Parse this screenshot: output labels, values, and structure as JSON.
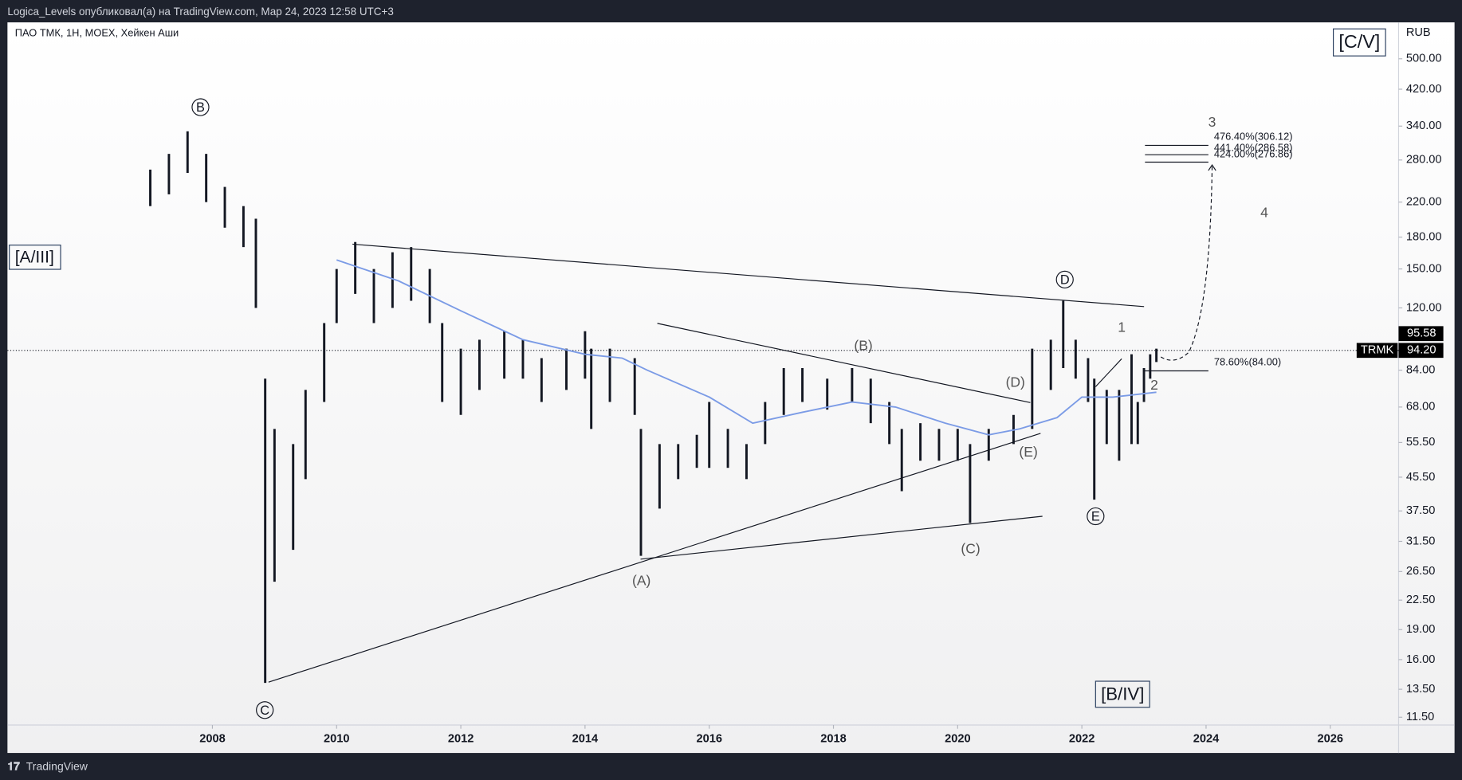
{
  "header": {
    "publisher": "Logica_Levels опубликовал(а) на TradingView.com, Мар 24, 2023 12:58 UTC+3"
  },
  "footer": {
    "brand": "TradingView"
  },
  "chart_data": {
    "type": "range",
    "title": "ПАО ТМК, 1Н, MOEX, Хейкен Аши",
    "y_unit": "RUB",
    "ylog": true,
    "xlim": [
      2004.7,
      2027.1
    ],
    "xticks": [
      2008,
      2010,
      2012,
      2014,
      2016,
      2018,
      2020,
      2022,
      2024,
      2026
    ],
    "ylim": [
      11,
      616
    ],
    "yticks": [
      {
        "value": 500,
        "label": "500.00"
      },
      {
        "value": 420,
        "label": "420.00"
      },
      {
        "value": 340,
        "label": "340.00"
      },
      {
        "value": 280,
        "label": "280.00"
      },
      {
        "value": 220,
        "label": "220.00"
      },
      {
        "value": 180,
        "label": "180.00"
      },
      {
        "value": 150,
        "label": "150.00"
      },
      {
        "value": 120,
        "label": "120.00"
      },
      {
        "value": 84,
        "label": "84.00"
      },
      {
        "value": 68,
        "label": "68.00"
      },
      {
        "value": 55.5,
        "label": "55.50"
      },
      {
        "value": 45.5,
        "label": "45.50"
      },
      {
        "value": 37.5,
        "label": "37.50"
      },
      {
        "value": 31.5,
        "label": "31.50"
      },
      {
        "value": 26.5,
        "label": "26.50"
      },
      {
        "value": 22.5,
        "label": "22.50"
      },
      {
        "value": 19,
        "label": "19.00"
      },
      {
        "value": 16,
        "label": "16.00"
      },
      {
        "value": 13.5,
        "label": "13.50"
      },
      {
        "value": 11.5,
        "label": "11.50"
      }
    ],
    "series": [
      {
        "name": "TRMK",
        "color": "#131722",
        "x": [
          2007.0,
          2007.3,
          2007.6,
          2007.9,
          2008.2,
          2008.5,
          2008.7,
          2008.85,
          2009.0,
          2009.3,
          2009.5,
          2009.8,
          2010.0,
          2010.3,
          2010.6,
          2010.9,
          2011.2,
          2011.5,
          2011.7,
          2012.0,
          2012.3,
          2012.7,
          2013.0,
          2013.3,
          2013.7,
          2014.0,
          2014.1,
          2014.4,
          2014.8,
          2014.9,
          2015.2,
          2015.5,
          2015.8,
          2016.0,
          2016.3,
          2016.6,
          2016.9,
          2017.2,
          2017.5,
          2017.9,
          2018.3,
          2018.6,
          2018.9,
          2019.1,
          2019.4,
          2019.7,
          2020.0,
          2020.2,
          2020.5,
          2020.9,
          2021.2,
          2021.5,
          2021.7,
          2021.9,
          2022.1,
          2022.2,
          2022.4,
          2022.6,
          2022.8,
          2022.9,
          2023.0,
          2023.1,
          2023.2
        ],
        "low": [
          215,
          230,
          260,
          220,
          190,
          170,
          120,
          14,
          25,
          30,
          45,
          70,
          110,
          130,
          110,
          120,
          125,
          110,
          70,
          65,
          75,
          80,
          80,
          70,
          75,
          80,
          60,
          70,
          65,
          29,
          38,
          45,
          48,
          48,
          48,
          45,
          55,
          65,
          70,
          67,
          70,
          62,
          55,
          42,
          50,
          50,
          50,
          35,
          50,
          55,
          60,
          75,
          85,
          80,
          70,
          40,
          55,
          50,
          55,
          55,
          70,
          80,
          88
        ],
        "high": [
          265,
          290,
          330,
          290,
          240,
          215,
          200,
          80,
          60,
          55,
          75,
          110,
          150,
          175,
          150,
          165,
          170,
          150,
          110,
          95,
          100,
          105,
          100,
          90,
          95,
          105,
          95,
          95,
          90,
          60,
          55,
          55,
          58,
          70,
          60,
          55,
          70,
          85,
          85,
          80,
          85,
          80,
          70,
          60,
          62,
          60,
          60,
          55,
          60,
          65,
          95,
          100,
          125,
          100,
          90,
          80,
          75,
          75,
          92,
          70,
          85,
          92,
          95
        ]
      }
    ],
    "ma": {
      "color": "#7b9be6",
      "x": [
        2010.0,
        2011.0,
        2012.0,
        2013.0,
        2014.0,
        2014.6,
        2015.0,
        2016.0,
        2016.7,
        2017.5,
        2018.3,
        2019.0,
        2019.8,
        2020.5,
        2021.0,
        2021.6,
        2022.0,
        2022.5,
        2023.2
      ],
      "values": [
        158,
        140,
        118,
        100,
        92,
        90,
        84,
        72,
        62,
        66,
        70,
        68,
        62,
        58,
        60,
        64,
        72,
        72,
        74
      ]
    },
    "price_labels": [
      "95.58",
      "94.20"
    ],
    "degree_labels": [
      "[C/V]",
      "[A/III]",
      "[B/IV]"
    ],
    "wave_labels": [
      "B",
      "C",
      "D",
      "E",
      "(A)",
      "(B)",
      "(C)",
      "(D)",
      "(E)",
      "1",
      "2",
      "3",
      "4"
    ],
    "fib_labels": [
      "476.40%(306.12)",
      "441.40%(286.58)",
      "424.00%(276.86)",
      "78.60%(84.00)"
    ]
  }
}
